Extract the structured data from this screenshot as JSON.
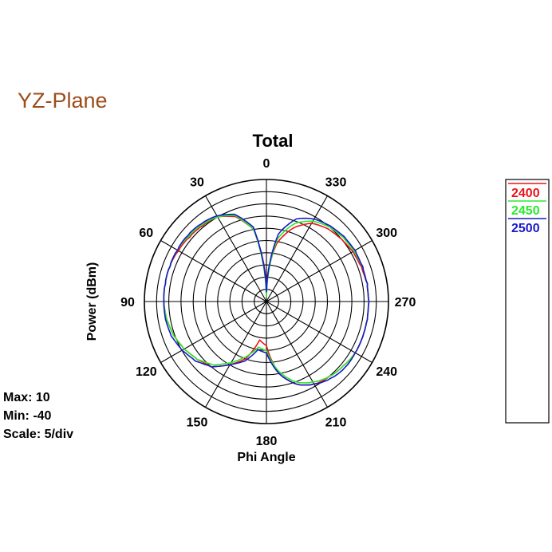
{
  "plane_title": "YZ-Plane",
  "colors": {
    "plane_title": "#9B4D1A",
    "series_2400": "#E8141B",
    "series_2450": "#2CE82C",
    "series_2500": "#1A1AC8"
  },
  "info": {
    "max": "Max: 10",
    "min": "Min: -40",
    "scale": "Scale: 5/div"
  },
  "chart_data": {
    "type": "polar-line",
    "title": "Total",
    "xlabel": "Phi Angle",
    "ylabel": "Power  (dBm)",
    "r_range": [
      -40,
      10
    ],
    "r_step": 5,
    "grid": true,
    "angle_direction": "counterclockwise",
    "angle_zero": "top",
    "angle_ticks": [
      "0",
      "30",
      "60",
      "90",
      "120",
      "150",
      "180",
      "210",
      "240",
      "270",
      "300",
      "330"
    ],
    "legend_position": "right",
    "angles": [
      0,
      10,
      20,
      30,
      40,
      50,
      60,
      70,
      80,
      90,
      100,
      110,
      120,
      130,
      140,
      150,
      160,
      170,
      180,
      190,
      200,
      210,
      220,
      230,
      240,
      250,
      260,
      270,
      280,
      290,
      300,
      310,
      320,
      330,
      340,
      350
    ],
    "series": [
      {
        "name": "2400",
        "color": "#E8141B",
        "values": [
          -34,
          -10,
          -3,
          0,
          0.5,
          1,
          1.5,
          2,
          2,
          2,
          1.5,
          0.5,
          -1,
          -3,
          -5,
          -10,
          -15,
          -24,
          -22,
          -10,
          -4,
          -1,
          0,
          1,
          2,
          2,
          2,
          2,
          2,
          1.5,
          1,
          0,
          -1,
          -3,
          -8,
          -16
        ]
      },
      {
        "name": "2450",
        "color": "#2CE82C",
        "values": [
          -38,
          -10,
          -2.5,
          0,
          1,
          1.5,
          2,
          2,
          2,
          2,
          1.5,
          0.5,
          -1,
          -3,
          -6,
          -11,
          -16,
          -21,
          -20,
          -11,
          -5,
          -2,
          0,
          1,
          2,
          2,
          2,
          2,
          2,
          2,
          1.5,
          1,
          0,
          -2,
          -6,
          -14
        ]
      },
      {
        "name": "2500",
        "color": "#1A1AC8",
        "values": [
          -36,
          -9,
          -2,
          0.5,
          1.5,
          2,
          2,
          2,
          2,
          2,
          2,
          1.5,
          0,
          -2,
          -5,
          -10,
          -14,
          -20,
          -19,
          -10,
          -4,
          -1,
          1,
          2,
          2,
          2,
          2,
          2,
          2,
          2,
          2,
          1.5,
          0.5,
          -1,
          -4,
          -12
        ]
      }
    ]
  }
}
